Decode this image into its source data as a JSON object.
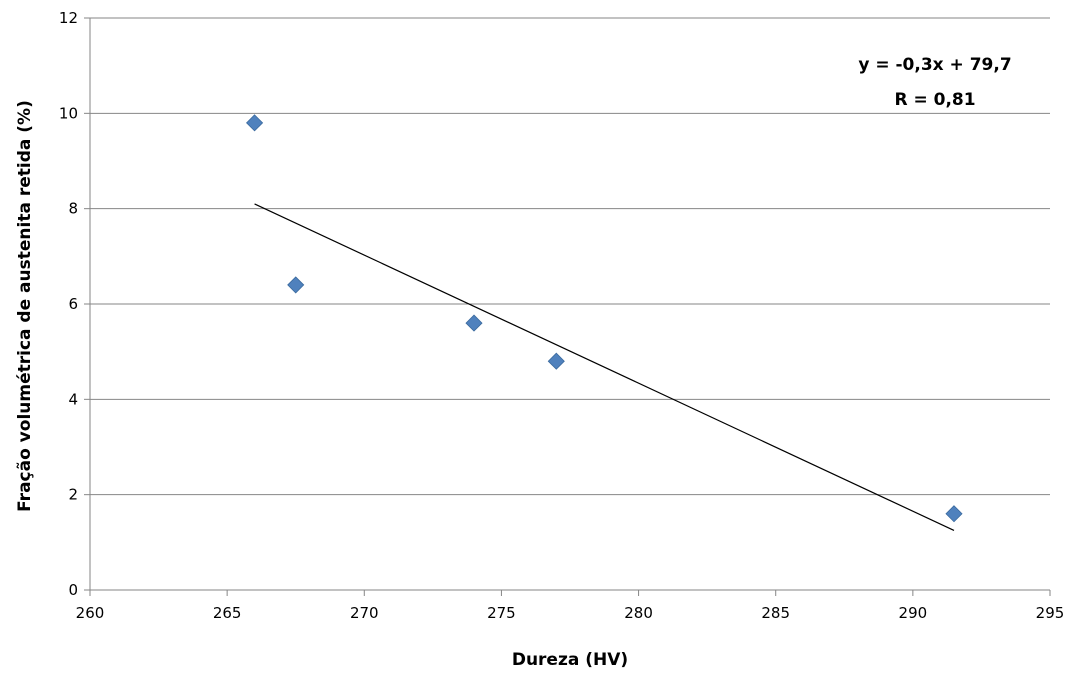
{
  "chart_data": {
    "type": "scatter",
    "title": "",
    "xlabel": "Dureza (HV)",
    "ylabel": "Fração volumétrica de austenita retida (%)",
    "xlim": [
      260,
      295
    ],
    "ylim": [
      0,
      12
    ],
    "x_ticks": [
      260,
      265,
      270,
      275,
      280,
      285,
      290,
      295
    ],
    "y_ticks": [
      0,
      2,
      4,
      6,
      8,
      10,
      12
    ],
    "grid": "horizontal",
    "legend": "none",
    "series": [
      {
        "marker": "diamond",
        "color": "#4F81BD",
        "points": [
          {
            "x": 266.0,
            "y": 9.8
          },
          {
            "x": 267.5,
            "y": 6.4
          },
          {
            "x": 274.0,
            "y": 5.6
          },
          {
            "x": 277.0,
            "y": 4.8
          },
          {
            "x": 291.5,
            "y": 1.6
          }
        ]
      }
    ],
    "trendline": {
      "type": "linear",
      "color": "#000000",
      "points": [
        {
          "x": 266.0,
          "y": 8.1
        },
        {
          "x": 291.5,
          "y": 1.25
        }
      ]
    },
    "annotations": [
      "y = -0,3x + 79,7",
      "R = 0,81"
    ]
  }
}
